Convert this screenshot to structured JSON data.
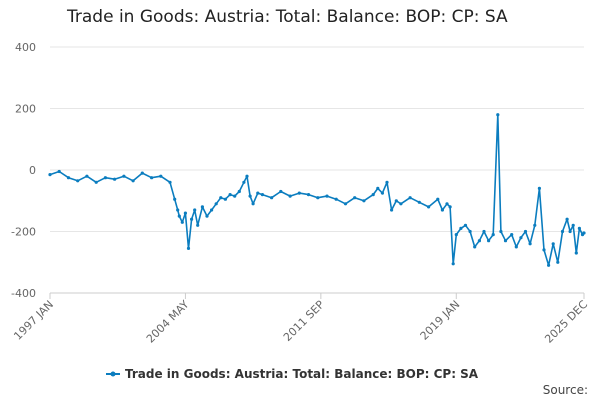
{
  "chart_data": {
    "type": "line",
    "title": "Trade in Goods: Austria: Total: Balance: BOP: CP: SA",
    "xlabel": "",
    "ylabel": "",
    "ylim": [
      -400,
      400
    ],
    "yticks": [
      400,
      200,
      0,
      -200,
      -400
    ],
    "xticks": [
      "1997 JAN",
      "2004 MAY",
      "2011 SEP",
      "2019 JAN",
      "2025 DEC"
    ],
    "grid": "horizontal",
    "legend_position": "bottom",
    "color": "#0b7dbf",
    "source_label": "Source:",
    "series": [
      {
        "name": "Trade in Goods: Austria: Total: Balance: BOP: CP: SA",
        "points": [
          [
            "1997-01",
            -15
          ],
          [
            "1997-07",
            -5
          ],
          [
            "1998-01",
            -25
          ],
          [
            "1998-07",
            -35
          ],
          [
            "1999-01",
            -20
          ],
          [
            "1999-07",
            -40
          ],
          [
            "2000-01",
            -25
          ],
          [
            "2000-07",
            -30
          ],
          [
            "2001-01",
            -20
          ],
          [
            "2001-07",
            -35
          ],
          [
            "2002-01",
            -10
          ],
          [
            "2002-07",
            -25
          ],
          [
            "2003-01",
            -20
          ],
          [
            "2003-07",
            -40
          ],
          [
            "2003-10",
            -95
          ],
          [
            "2003-12",
            -130
          ],
          [
            "2004-01",
            -150
          ],
          [
            "2004-03",
            -170
          ],
          [
            "2004-05",
            -140
          ],
          [
            "2004-07",
            -255
          ],
          [
            "2004-09",
            -160
          ],
          [
            "2004-11",
            -130
          ],
          [
            "2005-01",
            -180
          ],
          [
            "2005-04",
            -120
          ],
          [
            "2005-07",
            -150
          ],
          [
            "2005-10",
            -130
          ],
          [
            "2006-01",
            -110
          ],
          [
            "2006-04",
            -90
          ],
          [
            "2006-07",
            -95
          ],
          [
            "2006-10",
            -80
          ],
          [
            "2007-01",
            -85
          ],
          [
            "2007-04",
            -70
          ],
          [
            "2007-07",
            -40
          ],
          [
            "2007-09",
            -20
          ],
          [
            "2007-11",
            -85
          ],
          [
            "2008-01",
            -110
          ],
          [
            "2008-04",
            -75
          ],
          [
            "2008-07",
            -80
          ],
          [
            "2009-01",
            -90
          ],
          [
            "2009-07",
            -70
          ],
          [
            "2010-01",
            -85
          ],
          [
            "2010-07",
            -75
          ],
          [
            "2011-01",
            -80
          ],
          [
            "2011-07",
            -90
          ],
          [
            "2012-01",
            -85
          ],
          [
            "2012-07",
            -95
          ],
          [
            "2013-01",
            -110
          ],
          [
            "2013-07",
            -90
          ],
          [
            "2014-01",
            -100
          ],
          [
            "2014-07",
            -80
          ],
          [
            "2014-10",
            -60
          ],
          [
            "2015-01",
            -75
          ],
          [
            "2015-04",
            -40
          ],
          [
            "2015-07",
            -130
          ],
          [
            "2015-10",
            -100
          ],
          [
            "2016-01",
            -110
          ],
          [
            "2016-07",
            -90
          ],
          [
            "2017-01",
            -105
          ],
          [
            "2017-07",
            -120
          ],
          [
            "2018-01",
            -95
          ],
          [
            "2018-04",
            -130
          ],
          [
            "2018-07",
            -110
          ],
          [
            "2018-09",
            -120
          ],
          [
            "2018-11",
            -305
          ],
          [
            "2019-01",
            -210
          ],
          [
            "2019-04",
            -190
          ],
          [
            "2019-07",
            -180
          ],
          [
            "2019-10",
            -200
          ],
          [
            "2020-01",
            -250
          ],
          [
            "2020-04",
            -230
          ],
          [
            "2020-07",
            -200
          ],
          [
            "2020-10",
            -230
          ],
          [
            "2021-01",
            -210
          ],
          [
            "2021-04",
            180
          ],
          [
            "2021-06",
            -200
          ],
          [
            "2021-09",
            -230
          ],
          [
            "2022-01",
            -210
          ],
          [
            "2022-04",
            -250
          ],
          [
            "2022-07",
            -220
          ],
          [
            "2022-10",
            -200
          ],
          [
            "2023-01",
            -240
          ],
          [
            "2023-04",
            -180
          ],
          [
            "2023-07",
            -60
          ],
          [
            "2023-10",
            -260
          ],
          [
            "2024-01",
            -310
          ],
          [
            "2024-04",
            -240
          ],
          [
            "2024-07",
            -300
          ],
          [
            "2024-10",
            -200
          ],
          [
            "2025-01",
            -160
          ],
          [
            "2025-03",
            -200
          ],
          [
            "2025-05",
            -180
          ],
          [
            "2025-07",
            -270
          ],
          [
            "2025-09",
            -190
          ],
          [
            "2025-11",
            -210
          ],
          [
            "2025-12",
            -205
          ]
        ]
      }
    ]
  }
}
